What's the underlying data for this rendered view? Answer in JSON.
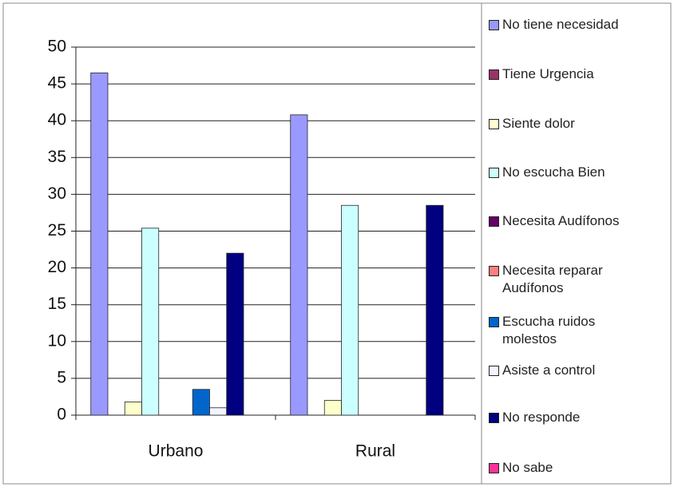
{
  "chart_data": {
    "type": "bar",
    "categories": [
      "Urbano",
      "Rural"
    ],
    "series": [
      {
        "name": "No tiene necesidad",
        "color": "#9999ff",
        "values": [
          46.5,
          40.8
        ]
      },
      {
        "name": "Tiene Urgencia",
        "color": "#993366",
        "values": [
          0,
          0
        ]
      },
      {
        "name": "Siente dolor",
        "color": "#ffffcc",
        "values": [
          1.8,
          2
        ]
      },
      {
        "name": "No escucha Bien",
        "color": "#ccffff",
        "values": [
          25.4,
          28.5
        ]
      },
      {
        "name": "Necesita Audífonos",
        "color": "#660066",
        "values": [
          0,
          0
        ]
      },
      {
        "name": "Necesita reparar Audífonos",
        "color": "#ff8080",
        "values": [
          0,
          0
        ]
      },
      {
        "name": "Escucha ruidos molestos",
        "color": "#0066cc",
        "values": [
          3.5,
          0
        ]
      },
      {
        "name": "Asiste a control",
        "color": "#f4f4ff",
        "values": [
          1,
          0
        ]
      },
      {
        "name": "No responde",
        "color": "#000080",
        "values": [
          22,
          28.5
        ]
      },
      {
        "name": "No sabe",
        "color": "#ff3399",
        "values": [
          0,
          0
        ]
      }
    ],
    "ylim": [
      0,
      50
    ],
    "yticks": [
      0,
      5,
      10,
      15,
      20,
      25,
      30,
      35,
      40,
      45,
      50
    ],
    "grid": true
  }
}
